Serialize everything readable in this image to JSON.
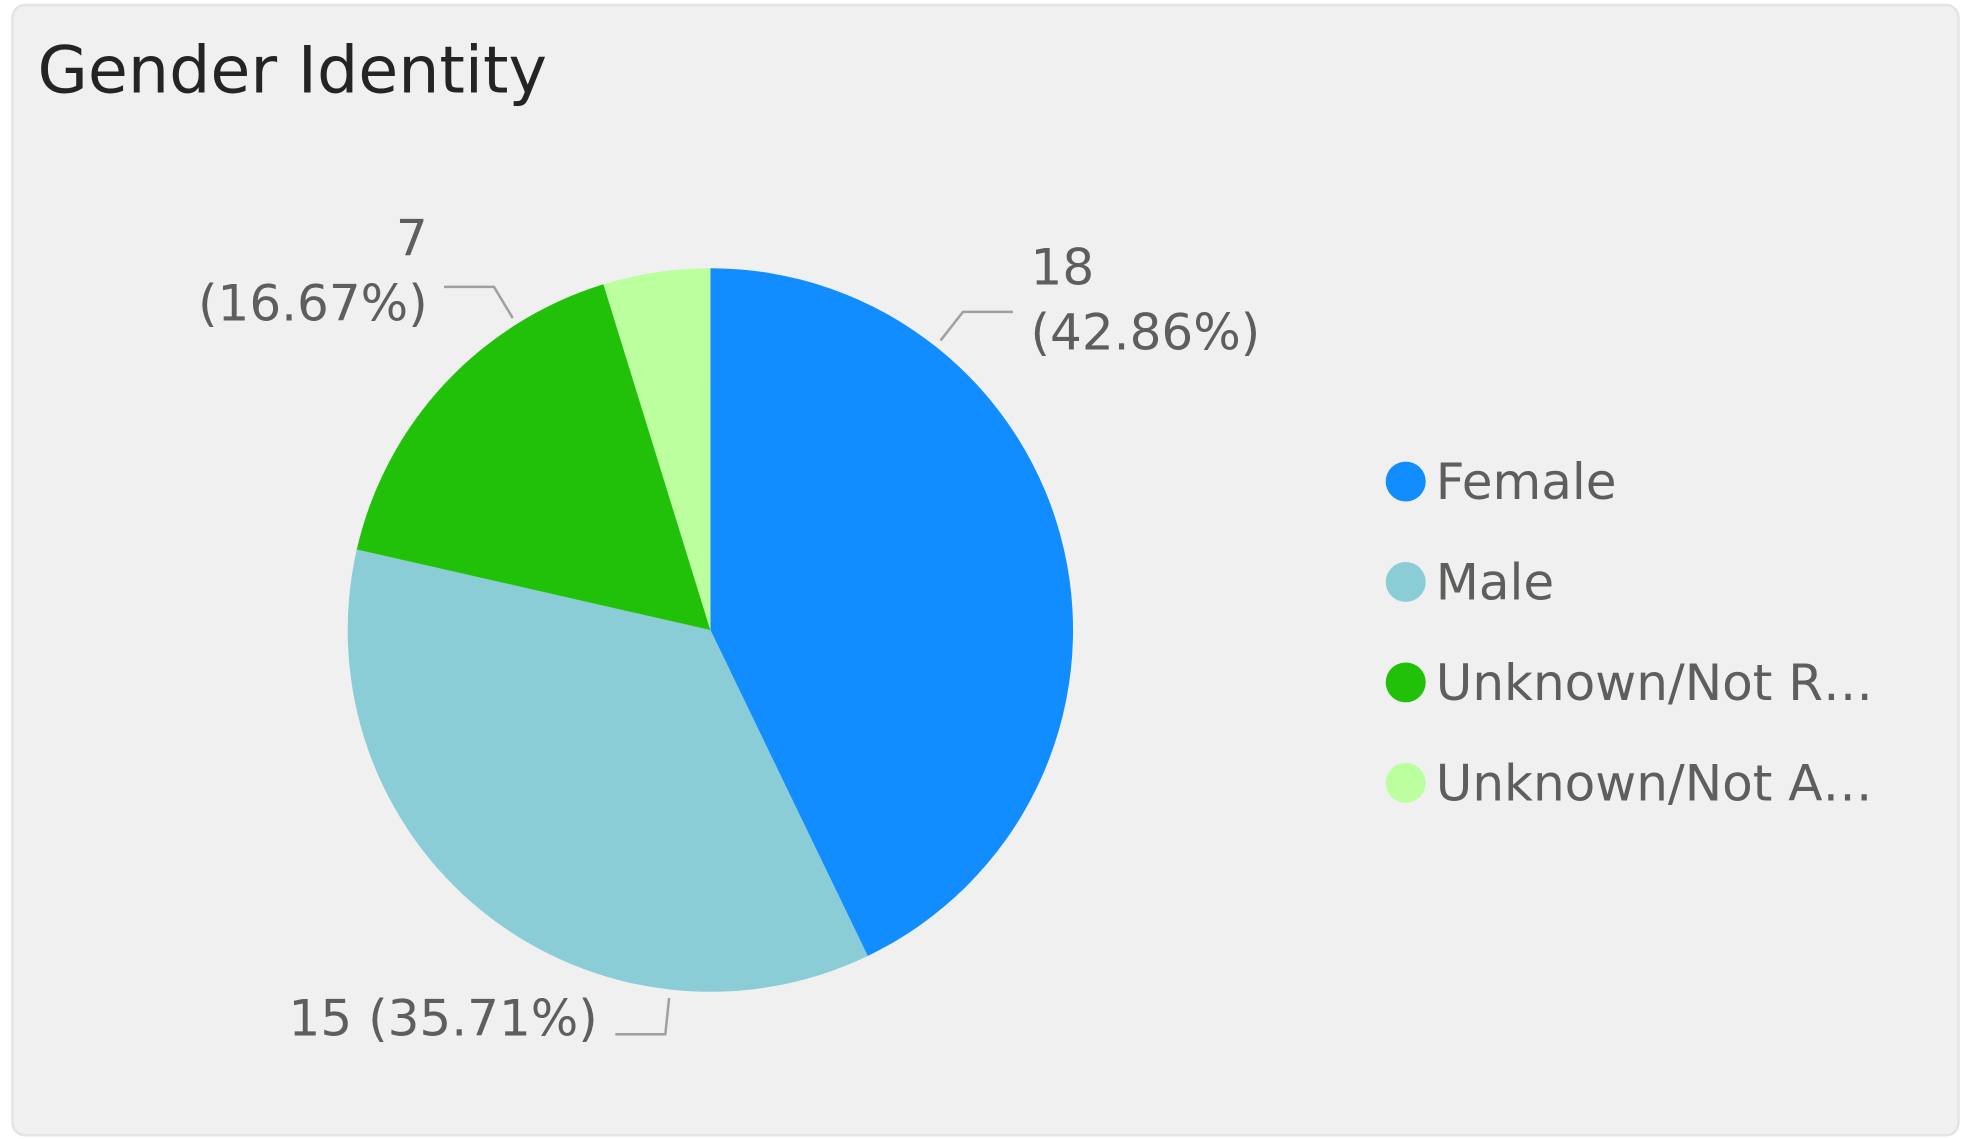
{
  "chart_data": {
    "type": "pie",
    "title": "Gender Identity",
    "categories": [
      "Female",
      "Male",
      "Unknown/Not R…",
      "Unknown/Not A…"
    ],
    "values": [
      18,
      15,
      7,
      2
    ],
    "value_labels": [
      "18 (42.86%)",
      "15 (35.71%)",
      "7 (16.67%)",
      null
    ],
    "colors": [
      "#118dff",
      "#8acdd7",
      "#21c10a",
      "#bbff9f"
    ],
    "legend": "right"
  }
}
